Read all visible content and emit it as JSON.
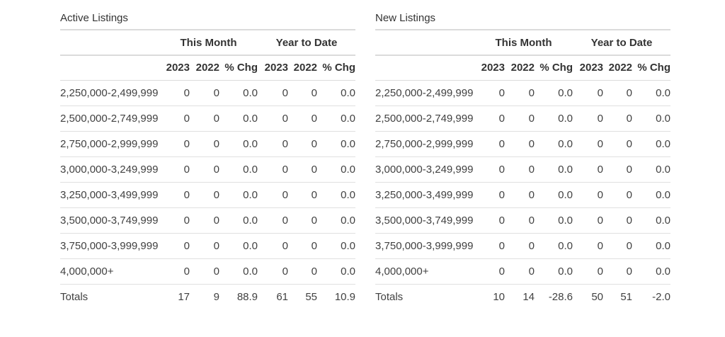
{
  "tables": [
    {
      "title": "Active Listings",
      "group_headers": {
        "this_month": "This Month",
        "year_to_date": "Year to Date"
      },
      "column_headers": [
        "2023",
        "2022",
        "% Chg",
        "2023",
        "2022",
        "% Chg"
      ],
      "rows": [
        {
          "label": "2,250,000-2,499,999",
          "values": [
            "0",
            "0",
            "0.0",
            "0",
            "0",
            "0.0"
          ]
        },
        {
          "label": "2,500,000-2,749,999",
          "values": [
            "0",
            "0",
            "0.0",
            "0",
            "0",
            "0.0"
          ]
        },
        {
          "label": "2,750,000-2,999,999",
          "values": [
            "0",
            "0",
            "0.0",
            "0",
            "0",
            "0.0"
          ]
        },
        {
          "label": "3,000,000-3,249,999",
          "values": [
            "0",
            "0",
            "0.0",
            "0",
            "0",
            "0.0"
          ]
        },
        {
          "label": "3,250,000-3,499,999",
          "values": [
            "0",
            "0",
            "0.0",
            "0",
            "0",
            "0.0"
          ]
        },
        {
          "label": "3,500,000-3,749,999",
          "values": [
            "0",
            "0",
            "0.0",
            "0",
            "0",
            "0.0"
          ]
        },
        {
          "label": "3,750,000-3,999,999",
          "values": [
            "0",
            "0",
            "0.0",
            "0",
            "0",
            "0.0"
          ]
        },
        {
          "label": "4,000,000+",
          "values": [
            "0",
            "0",
            "0.0",
            "0",
            "0",
            "0.0"
          ]
        }
      ],
      "totals": {
        "label": "Totals",
        "values": [
          "17",
          "9",
          "88.9",
          "61",
          "55",
          "10.9"
        ]
      }
    },
    {
      "title": "New Listings",
      "group_headers": {
        "this_month": "This Month",
        "year_to_date": "Year to Date"
      },
      "column_headers": [
        "2023",
        "2022",
        "% Chg",
        "2023",
        "2022",
        "% Chg"
      ],
      "rows": [
        {
          "label": "2,250,000-2,499,999",
          "values": [
            "0",
            "0",
            "0.0",
            "0",
            "0",
            "0.0"
          ]
        },
        {
          "label": "2,500,000-2,749,999",
          "values": [
            "0",
            "0",
            "0.0",
            "0",
            "0",
            "0.0"
          ]
        },
        {
          "label": "2,750,000-2,999,999",
          "values": [
            "0",
            "0",
            "0.0",
            "0",
            "0",
            "0.0"
          ]
        },
        {
          "label": "3,000,000-3,249,999",
          "values": [
            "0",
            "0",
            "0.0",
            "0",
            "0",
            "0.0"
          ]
        },
        {
          "label": "3,250,000-3,499,999",
          "values": [
            "0",
            "0",
            "0.0",
            "0",
            "0",
            "0.0"
          ]
        },
        {
          "label": "3,500,000-3,749,999",
          "values": [
            "0",
            "0",
            "0.0",
            "0",
            "0",
            "0.0"
          ]
        },
        {
          "label": "3,750,000-3,999,999",
          "values": [
            "0",
            "0",
            "0.0",
            "0",
            "0",
            "0.0"
          ]
        },
        {
          "label": "4,000,000+",
          "values": [
            "0",
            "0",
            "0.0",
            "0",
            "0",
            "0.0"
          ]
        }
      ],
      "totals": {
        "label": "Totals",
        "values": [
          "10",
          "14",
          "-28.6",
          "50",
          "51",
          "-2.0"
        ]
      }
    }
  ]
}
